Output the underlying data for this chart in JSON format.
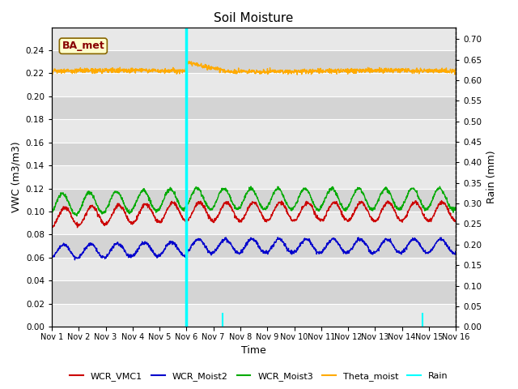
{
  "title": "Soil Moisture",
  "xlabel": "Time",
  "ylabel_left": "VWC (m3/m3)",
  "ylabel_right": "Rain (mm)",
  "annotation_text": "BA_met",
  "xlim": [
    0,
    15
  ],
  "ylim_left": [
    0.0,
    0.26
  ],
  "ylim_right": [
    0.0,
    0.7292
  ],
  "x_tick_labels": [
    "Nov 1",
    "Nov 2",
    "Nov 3",
    "Nov 4",
    "Nov 5",
    "Nov 6",
    "Nov 7",
    "Nov 8",
    "Nov 9",
    "Nov 10",
    "Nov 11",
    "Nov 12",
    "Nov 13",
    "Nov 14",
    "Nov 15",
    "Nov 16"
  ],
  "y_ticks_left": [
    0.0,
    0.02,
    0.04,
    0.06,
    0.08,
    0.1,
    0.12,
    0.14,
    0.16,
    0.18,
    0.2,
    0.22,
    0.24
  ],
  "y_ticks_right": [
    0.0,
    0.05,
    0.1,
    0.15,
    0.2,
    0.25,
    0.3,
    0.35,
    0.4,
    0.45,
    0.5,
    0.55,
    0.6,
    0.65,
    0.7
  ],
  "colors": {
    "WCR_VMC1": "#cc0000",
    "WCR_Moist2": "#0000cc",
    "WCR_Moist3": "#00aa00",
    "Theta_moist": "#ffaa00",
    "Rain": "cyan",
    "bg_light": "#e8e8e8",
    "bg_dark": "#d4d4d4",
    "annotation_bg": "#ffffcc",
    "annotation_border": "#886600",
    "annotation_text": "#880000"
  },
  "num_days": 15,
  "points_per_day": 96
}
